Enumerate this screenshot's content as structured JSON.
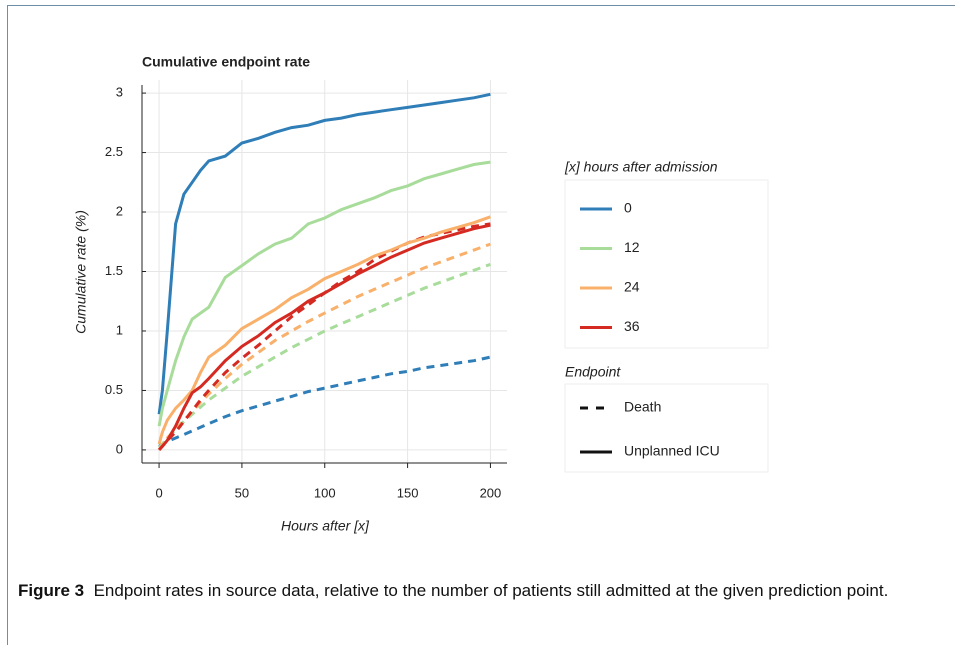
{
  "chart_data": {
    "type": "line",
    "title": "Cumulative endpoint rate",
    "x_label": "Hours after [x]",
    "y_label": "Cumulative rate (%)",
    "xlim": [
      -10.3,
      210
    ],
    "ylim": [
      -0.11,
      3.11
    ],
    "xticks": [
      0,
      50,
      100,
      150,
      200
    ],
    "yticks": [
      0,
      0.5,
      1,
      1.5,
      2,
      2.5,
      3
    ],
    "grid": true,
    "x": [
      0,
      2,
      5,
      10,
      15,
      20,
      25,
      30,
      40,
      50,
      60,
      70,
      80,
      90,
      100,
      110,
      120,
      130,
      140,
      150,
      160,
      170,
      180,
      190,
      200
    ],
    "legend_title": "[x] hours after admission",
    "series": [
      {
        "name": "0",
        "color": "#2f7eb8",
        "values": [
          0.3,
          0.5,
          1.0,
          1.9,
          2.15,
          2.25,
          2.35,
          2.43,
          2.47,
          2.58,
          2.62,
          2.67,
          2.71,
          2.73,
          2.77,
          2.79,
          2.82,
          2.84,
          2.86,
          2.88,
          2.9,
          2.92,
          2.94,
          2.96,
          2.99
        ],
        "death_values": [
          0.03,
          0.05,
          0.07,
          0.1,
          0.13,
          0.16,
          0.19,
          0.22,
          0.28,
          0.33,
          0.37,
          0.41,
          0.45,
          0.49,
          0.52,
          0.55,
          0.58,
          0.61,
          0.64,
          0.66,
          0.69,
          0.71,
          0.73,
          0.75,
          0.78
        ]
      },
      {
        "name": "12",
        "color": "#a8dc9a",
        "values": [
          0.2,
          0.35,
          0.5,
          0.75,
          0.95,
          1.1,
          1.15,
          1.2,
          1.45,
          1.55,
          1.65,
          1.73,
          1.78,
          1.9,
          1.95,
          2.02,
          2.07,
          2.12,
          2.18,
          2.22,
          2.28,
          2.32,
          2.36,
          2.4,
          2.42
        ],
        "death_values": [
          0.02,
          0.05,
          0.1,
          0.17,
          0.24,
          0.3,
          0.36,
          0.42,
          0.52,
          0.62,
          0.7,
          0.78,
          0.86,
          0.93,
          1.0,
          1.06,
          1.12,
          1.18,
          1.24,
          1.3,
          1.36,
          1.41,
          1.46,
          1.51,
          1.56
        ]
      },
      {
        "name": "24",
        "color": "#f8b06a",
        "values": [
          0.05,
          0.15,
          0.25,
          0.35,
          0.42,
          0.5,
          0.65,
          0.78,
          0.88,
          1.02,
          1.1,
          1.18,
          1.28,
          1.35,
          1.44,
          1.5,
          1.56,
          1.63,
          1.68,
          1.74,
          1.78,
          1.83,
          1.87,
          1.91,
          1.96
        ],
        "death_values": [
          0.0,
          0.04,
          0.1,
          0.17,
          0.25,
          0.32,
          0.4,
          0.47,
          0.6,
          0.72,
          0.82,
          0.92,
          1.0,
          1.08,
          1.15,
          1.22,
          1.29,
          1.35,
          1.41,
          1.47,
          1.53,
          1.58,
          1.63,
          1.68,
          1.73
        ]
      },
      {
        "name": "36",
        "color": "#d42a22",
        "values": [
          0.0,
          0.03,
          0.08,
          0.2,
          0.35,
          0.48,
          0.53,
          0.6,
          0.75,
          0.87,
          0.96,
          1.07,
          1.15,
          1.25,
          1.32,
          1.4,
          1.48,
          1.55,
          1.62,
          1.68,
          1.74,
          1.78,
          1.82,
          1.86,
          1.89
        ],
        "death_values": [
          0.0,
          0.03,
          0.08,
          0.15,
          0.24,
          0.33,
          0.42,
          0.5,
          0.65,
          0.77,
          0.88,
          1.0,
          1.12,
          1.22,
          1.32,
          1.42,
          1.5,
          1.6,
          1.67,
          1.74,
          1.79,
          1.82,
          1.85,
          1.88,
          1.9
        ]
      }
    ],
    "endpoint_legend": {
      "title": "Endpoint",
      "entries": [
        "Death",
        "Unplanned ICU"
      ]
    }
  },
  "caption": {
    "label": "Figure 3",
    "text": "Endpoint rates in source data, relative to the number of patients still admitted at the given prediction point."
  }
}
